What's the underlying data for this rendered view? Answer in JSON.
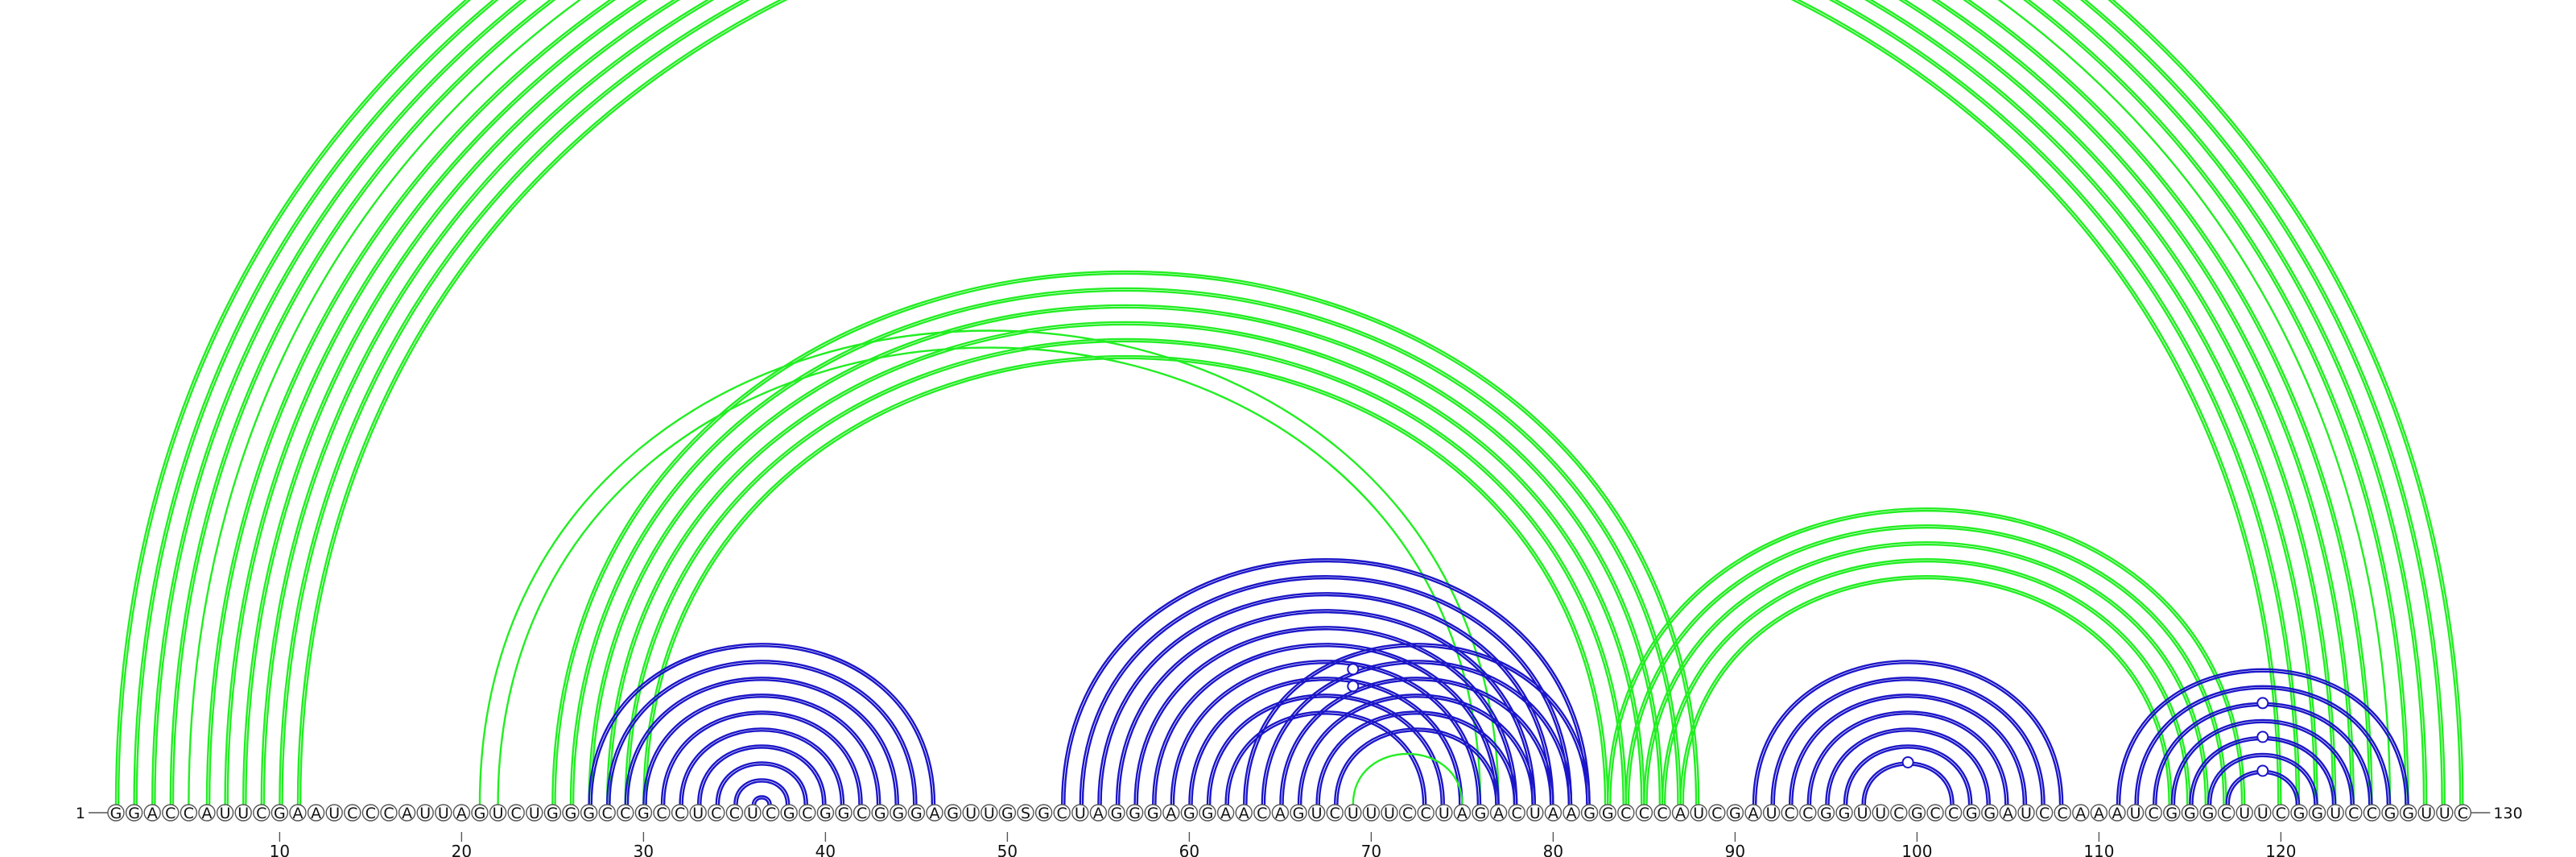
{
  "sequence": "GGACCAUUCGAAUCCCAUUAGUCUGGGCCGCCUCCUCGCGGCGGGAGUUGSGCUAGGGAGGAACAGUCUUUCCUAGACUAAGGCCCAUCGAUCCGGUUCGCCGGAUCCAAAUCGGGCUUCGGUCCGGUUC",
  "start_label": "1",
  "end_label": "130",
  "ticks": [
    "10",
    "20",
    "30",
    "40",
    "50",
    "60",
    "70",
    "80",
    "90",
    "100",
    "110",
    "120"
  ],
  "colors": {
    "green": "#22ee22",
    "blue": "#1c16c8"
  },
  "helices": [
    {
      "color": "green",
      "five_prime": [
        1,
        2,
        3,
        4
      ],
      "three_prime": [
        130,
        129,
        128,
        127
      ],
      "strokes": 2
    },
    {
      "color": "green",
      "five_prime": [
        5
      ],
      "three_prime": [
        126
      ],
      "strokes": 1
    },
    {
      "color": "green",
      "five_prime": [
        6,
        7,
        8,
        9,
        10,
        11
      ],
      "three_prime": [
        125,
        124,
        123,
        122,
        121,
        120
      ],
      "strokes": 3
    },
    {
      "color": "green",
      "five_prime": [
        21,
        22
      ],
      "three_prime": [
        77,
        76
      ],
      "strokes": 1
    },
    {
      "color": "green",
      "five_prime": [
        25,
        26,
        27,
        28,
        29,
        30
      ],
      "three_prime": [
        88,
        87,
        86,
        85,
        84,
        83
      ],
      "strokes": 3
    },
    {
      "color": "green",
      "five_prime": [
        83,
        84,
        85,
        86,
        87
      ],
      "three_prime": [
        118,
        117,
        116,
        115,
        114
      ],
      "strokes": 3
    },
    {
      "color": "blue",
      "five_prime": [
        27,
        28,
        29,
        30,
        31,
        32,
        33,
        34,
        35,
        36
      ],
      "three_prime": [
        46,
        45,
        44,
        43,
        42,
        41,
        40,
        39,
        38,
        37
      ],
      "strokes": 3
    },
    {
      "color": "blue",
      "five_prime": [
        53,
        54,
        55,
        56,
        57,
        58,
        59,
        60,
        61,
        62
      ],
      "three_prime": [
        82,
        81,
        80,
        79,
        78,
        77,
        76,
        75,
        74,
        73
      ],
      "strokes": 3
    },
    {
      "color": "blue",
      "five_prime": [
        63,
        64,
        65,
        66,
        67,
        68
      ],
      "three_prime": [
        82,
        81,
        80,
        79,
        78,
        77
      ],
      "strokes": 3
    },
    {
      "color": "green",
      "five_prime": [
        69
      ],
      "three_prime": [
        75
      ],
      "strokes": 1
    },
    {
      "color": "blue",
      "five_prime": [
        91,
        92,
        93,
        94,
        95,
        96,
        97
      ],
      "three_prime": [
        108,
        107,
        106,
        105,
        104,
        103,
        102
      ],
      "strokes": 3
    },
    {
      "color": "blue",
      "five_prime": [
        111,
        112,
        113,
        114,
        115,
        116,
        117
      ],
      "three_prime": [
        127,
        126,
        125,
        124,
        123,
        122,
        121
      ],
      "strokes": 3
    }
  ],
  "markers": [
    {
      "color": "green",
      "from": 5,
      "to": 126
    },
    {
      "color": "blue",
      "from": 61,
      "to": 77
    },
    {
      "color": "blue",
      "from": 62,
      "to": 76
    },
    {
      "color": "blue",
      "from": 97,
      "to": 102
    },
    {
      "color": "blue",
      "from": 113,
      "to": 125
    },
    {
      "color": "blue",
      "from": 115,
      "to": 123
    },
    {
      "color": "blue",
      "from": 117,
      "to": 121
    }
  ]
}
